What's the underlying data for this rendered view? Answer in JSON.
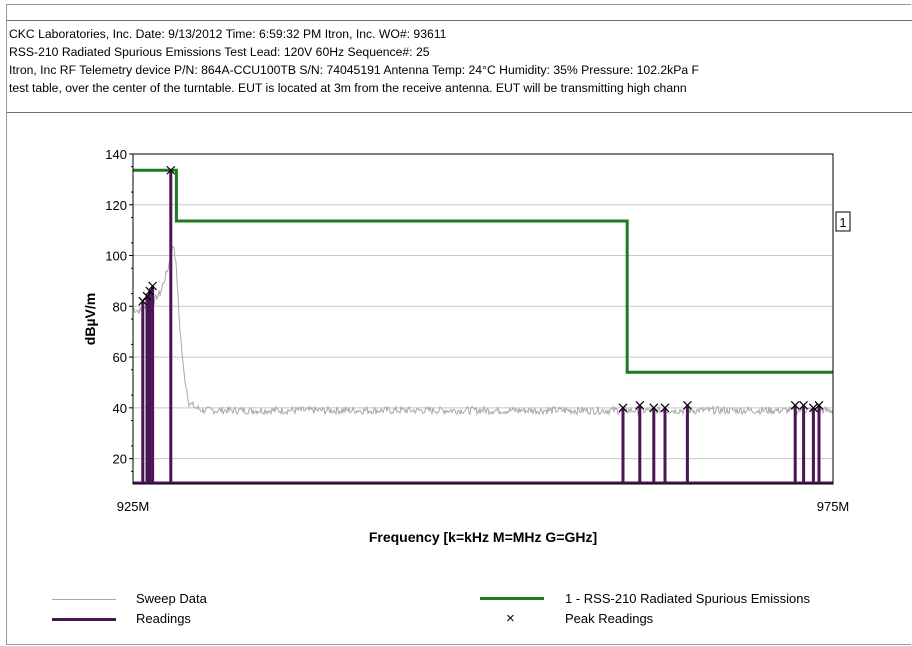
{
  "header": {
    "line1": "CKC Laboratories, Inc.  Date:  9/13/2012  Time: 6:59:32 PM  Itron, Inc. WO#: 93611",
    "line2": "RSS-210 Radiated Spurious Emissions Test Lead:  120V 60Hz Sequence#: 25",
    "line3": "Itron, Inc RF Telemetry device P/N: 864A-CCU100TB S/N: 74045191 Antenna Temp: 24°C Humidity: 35% Pressure: 102.2kPa F",
    "line4": "test table, over the center of the turntable. EUT is located at 3m from the receive antenna. EUT will be transmitting  high chann"
  },
  "chart_data": {
    "type": "line",
    "xlabel": "Frequency [k=kHz M=MHz G=GHz]",
    "ylabel": "dBµV/m",
    "xlim": [
      925,
      975
    ],
    "ylim": [
      10,
      140
    ],
    "x_tick_labels": [
      "925M",
      "975M"
    ],
    "y_ticks": [
      20,
      40,
      60,
      80,
      100,
      120,
      140
    ],
    "grid": true,
    "limit_marker_label": "1",
    "series": [
      {
        "name": "Sweep Data",
        "color": "#a8a8a8",
        "x": [
          925,
          925.6,
          926,
          926.5,
          927,
          927.5,
          927.9,
          928.1,
          928.3,
          928.6,
          929,
          929.5,
          930,
          935,
          940,
          945,
          950,
          955,
          960,
          965,
          970,
          975
        ],
        "y": [
          79,
          78,
          80,
          82,
          86,
          95,
          105,
          95,
          75,
          55,
          42,
          40,
          39,
          39,
          39,
          39,
          39,
          39,
          39,
          39,
          39,
          39
        ]
      },
      {
        "name": "1 - RSS-210 Radiated Spurious Emissions",
        "color": "#1f7a1f",
        "x": [
          925,
          928.1,
          928.1,
          960.3,
          960.3,
          975
        ],
        "y": [
          133.6,
          133.6,
          113.6,
          113.6,
          54,
          54
        ]
      },
      {
        "name": "Readings",
        "color": "#4b1454",
        "x": [
          925.7,
          926.0,
          926.2,
          926.4,
          927.7,
          960.0,
          961.2,
          962.2,
          963.0,
          964.6,
          972.3,
          972.9,
          973.6,
          974.0
        ],
        "y": [
          82,
          84,
          86,
          88,
          133.6,
          40,
          41,
          40,
          40,
          41,
          41,
          41,
          40,
          41
        ]
      },
      {
        "name": "Peak Readings",
        "color": "#000000",
        "x": [
          925.7,
          926.0,
          926.2,
          926.4,
          927.7,
          960.0,
          961.2,
          962.2,
          963.0,
          964.6,
          972.3,
          972.9,
          973.6,
          974.0
        ],
        "y": [
          82,
          84,
          86,
          88,
          133.6,
          40,
          41,
          40,
          40,
          41,
          41,
          41,
          40,
          41
        ]
      }
    ]
  },
  "legend": {
    "sweep": "Sweep Data",
    "readings": "Readings",
    "limit": "1 - RSS-210 Radiated Spurious Emissions",
    "peaks": "Peak Readings",
    "peak_symbol": "×"
  }
}
